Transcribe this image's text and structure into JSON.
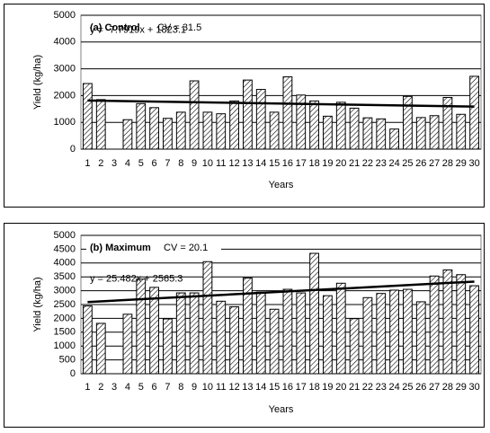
{
  "chart_data": [
    {
      "type": "bar",
      "annotation": "(a) Control",
      "cv": "CV = 31.5",
      "ylabel": "Yield (kg/ha)",
      "xlabel": "Years",
      "categories": [
        "1",
        "2",
        "3",
        "4",
        "5",
        "6",
        "7",
        "8",
        "9",
        "10",
        "11",
        "12",
        "13",
        "14",
        "15",
        "16",
        "17",
        "18",
        "19",
        "20",
        "21",
        "22",
        "23",
        "24",
        "25",
        "26",
        "27",
        "28",
        "29",
        "30"
      ],
      "values": [
        2450,
        1850,
        null,
        1100,
        1700,
        1550,
        1150,
        1380,
        2550,
        1380,
        1320,
        1800,
        2580,
        2230,
        1380,
        2700,
        2020,
        1800,
        1230,
        1750,
        1530,
        1170,
        1130,
        750,
        1970,
        1180,
        1250,
        1930,
        1300,
        2720
      ],
      "color": "#000000",
      "trend": {
        "label": "y = -7.7919x + 1823.1",
        "values": [
          1815.3,
          1589.3
        ]
      },
      "ylim": [
        0,
        5000
      ],
      "yticks": [
        0,
        1000,
        2000,
        3000,
        4000,
        5000
      ],
      "grid": true
    },
    {
      "type": "bar",
      "annotation": "(b) Maximum",
      "cv": "CV = 20.1",
      "ylabel": "Yield (kg/ha)",
      "xlabel": "Years",
      "categories": [
        "1",
        "2",
        "3",
        "4",
        "5",
        "6",
        "7",
        "8",
        "9",
        "10",
        "11",
        "12",
        "13",
        "14",
        "15",
        "16",
        "17",
        "18",
        "19",
        "20",
        "21",
        "22",
        "23",
        "24",
        "25",
        "26",
        "27",
        "28",
        "29",
        "30"
      ],
      "values": [
        2450,
        1820,
        null,
        2150,
        3420,
        3120,
        1980,
        2920,
        2920,
        4050,
        2620,
        2420,
        3460,
        2950,
        2330,
        3050,
        2920,
        4350,
        2820,
        3270,
        1990,
        2750,
        2900,
        3020,
        3050,
        2600,
        3530,
        3750,
        3580,
        3180
      ],
      "color": "#000000",
      "trend": {
        "label": "y = 25.482x + 2565.3",
        "values": [
          2590.8,
          3329.8
        ]
      },
      "ylim": [
        0,
        5000
      ],
      "yticks": [
        0,
        500,
        1000,
        1500,
        2000,
        2500,
        3000,
        3500,
        4000,
        4500,
        5000
      ],
      "grid": true
    }
  ]
}
